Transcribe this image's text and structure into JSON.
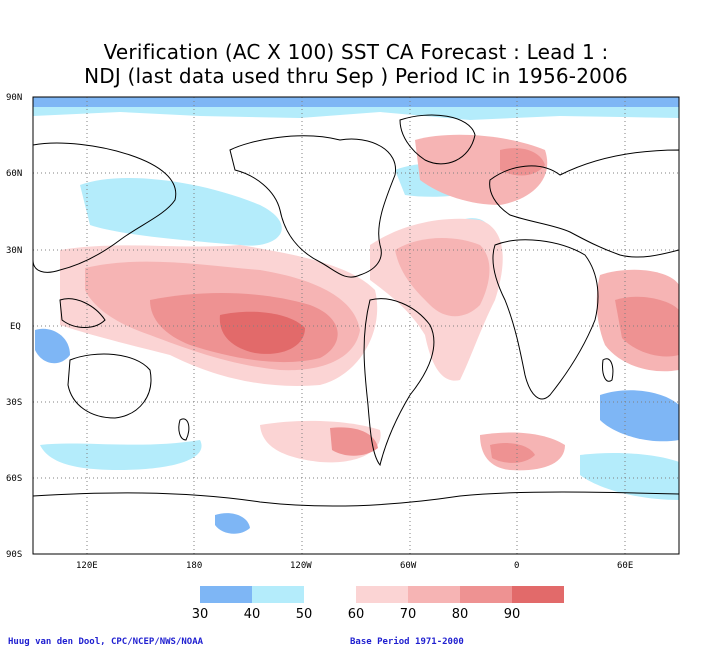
{
  "title": {
    "line1": "Verification (AC X 100) SST CA Forecast : Lead 1 :",
    "line2": "NDJ (last data used thru Sep ) Period IC in 1956-2006"
  },
  "axes": {
    "lat_labels": [
      "90N",
      "60N",
      "30N",
      "EQ",
      "30S",
      "60S",
      "90S"
    ],
    "lon_labels": [
      "120E",
      "180",
      "120W",
      "60W",
      "0",
      "60E"
    ]
  },
  "legend": {
    "labels": [
      "30",
      "40",
      "50",
      "60",
      "70",
      "80",
      "90"
    ],
    "colors": [
      "#7eb6f5",
      "#b4ecfb",
      "#ffffff",
      "#fbd4d4",
      "#f6b4b4",
      "#ee9292",
      "#e26a6a"
    ]
  },
  "credits": {
    "left": "Huug van den Dool, CPC/NCEP/NWS/NOAA",
    "right": "Base Period 1971-2000"
  },
  "colors": {
    "c30": "#7eb6f5",
    "c40": "#b4ecfb",
    "c60": "#fbd4d4",
    "c70": "#f6b4b4",
    "c80": "#ee9292",
    "c90": "#e26a6a"
  }
}
